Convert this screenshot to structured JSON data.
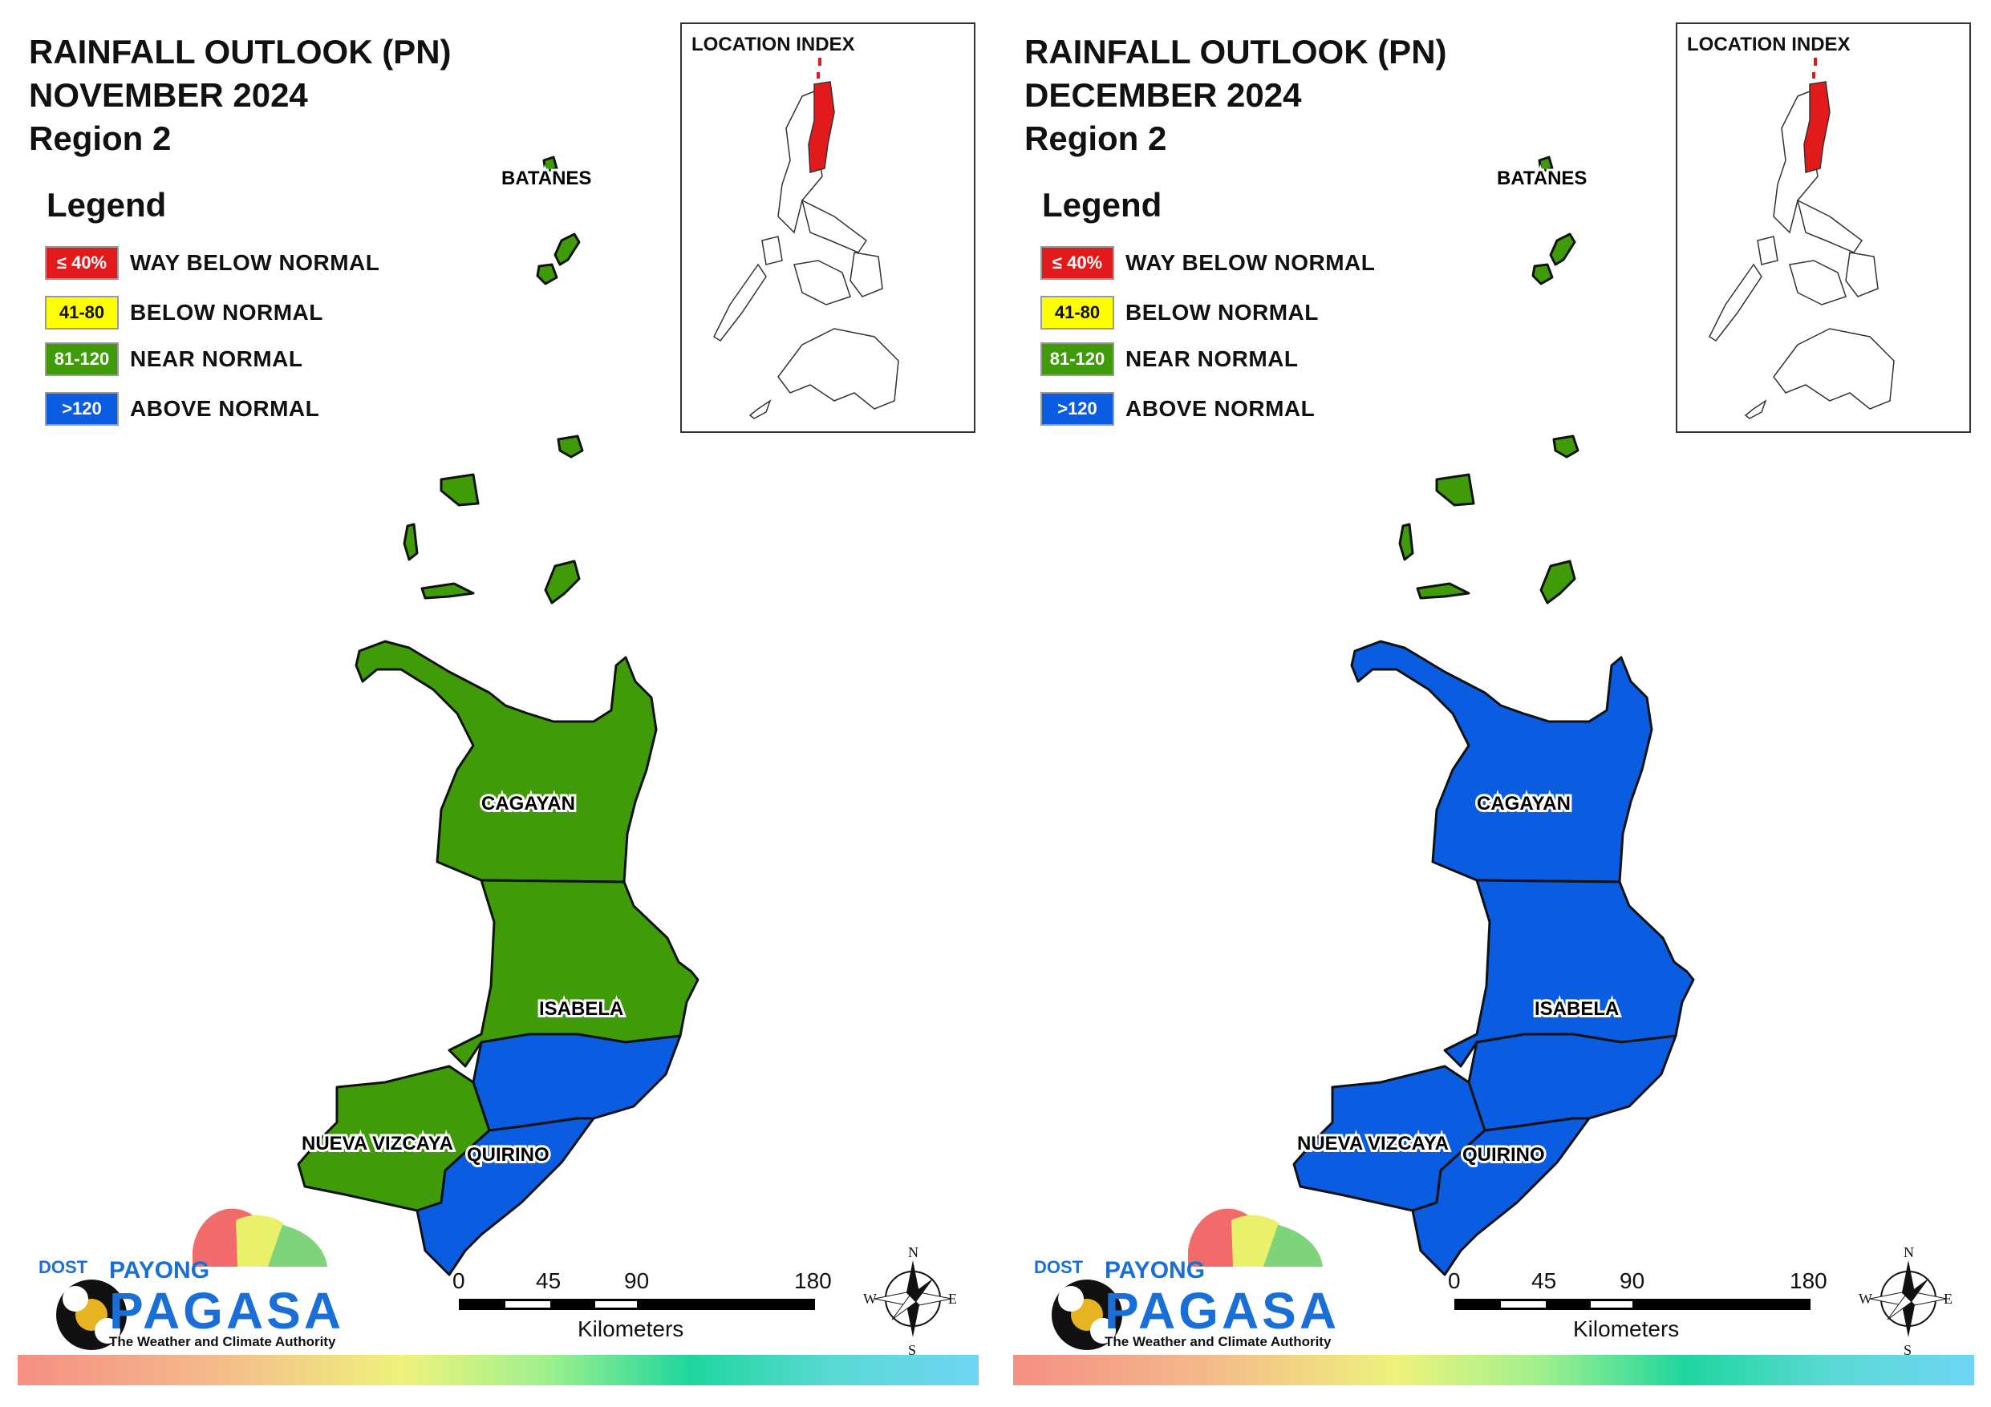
{
  "colors": {
    "way_below": "#e31a1c",
    "below": "#ffff00",
    "near": "#3f9c08",
    "above": "#0a5ce0"
  },
  "legend": {
    "title": "Legend",
    "items": [
      {
        "badge": "≤ 40%",
        "label": "WAY BELOW NORMAL"
      },
      {
        "badge": "41-80",
        "label": "BELOW NORMAL"
      },
      {
        "badge": "81-120",
        "label": "NEAR NORMAL"
      },
      {
        "badge": ">120",
        "label": "ABOVE NORMAL"
      }
    ]
  },
  "inset": {
    "title": "LOCATION INDEX"
  },
  "places": {
    "batanes": "BATANES",
    "cagayan": "CAGAYAN",
    "isabela": "ISABELA",
    "nueva_vizcaya": "NUEVA VIZCAYA",
    "quirino": "QUIRINO"
  },
  "scale": {
    "ticks": [
      "0",
      "45",
      "90",
      "180"
    ],
    "unit": "Kilometers"
  },
  "compass": {
    "n": "N",
    "s": "S",
    "e": "E",
    "w": "W"
  },
  "branding": {
    "dost": "DOST",
    "payong": "PAYONG",
    "pagasa": "PAGASA",
    "tagline": "The Weather and Climate Authority"
  },
  "panels": [
    {
      "title_line1": "RAINFALL OUTLOOK (PN)",
      "title_line2": "NOVEMBER 2024",
      "title_line3": "Region 2",
      "categories": {
        "batanes": "near",
        "cagayan": "near",
        "isabela_north": "near",
        "isabela_south": "above",
        "nueva_vizcaya": "near",
        "quirino": "above"
      }
    },
    {
      "title_line1": "RAINFALL OUTLOOK (PN)",
      "title_line2": "DECEMBER 2024",
      "title_line3": "Region 2",
      "categories": {
        "batanes": "near",
        "cagayan": "above",
        "isabela_north": "above",
        "isabela_south": "above",
        "nueva_vizcaya": "above",
        "quirino": "above"
      }
    }
  ]
}
